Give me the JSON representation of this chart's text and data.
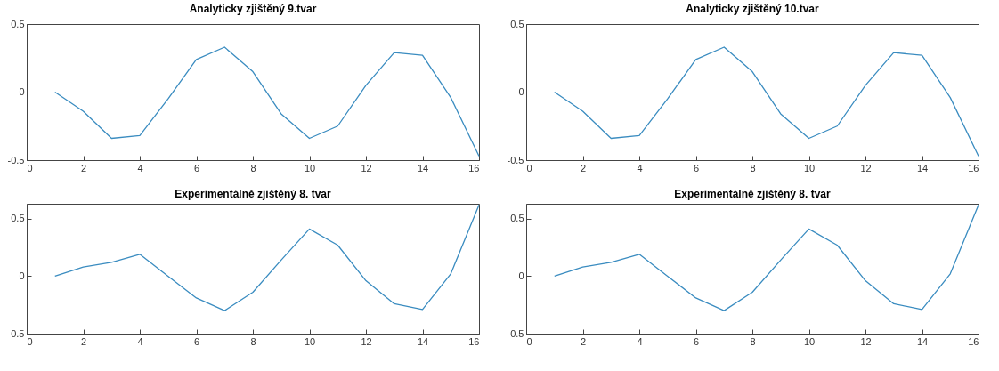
{
  "chart_data": [
    {
      "type": "line",
      "title": "Analyticky zjištěný 9.tvar",
      "x": [
        1,
        2,
        3,
        4,
        5,
        6,
        7,
        8,
        9,
        10,
        11,
        12,
        13,
        14,
        15,
        16
      ],
      "series": [
        {
          "color": "#3a8cc0",
          "values": [
            0,
            -0.14,
            -0.34,
            -0.32,
            -0.05,
            0.24,
            0.33,
            0.15,
            -0.16,
            -0.34,
            -0.25,
            0.05,
            0.29,
            0.27,
            -0.04,
            -0.47
          ]
        }
      ],
      "xlim": [
        0,
        16
      ],
      "xticks": [
        0,
        2,
        4,
        6,
        8,
        10,
        12,
        14,
        16
      ],
      "ylim": [
        -0.5,
        0.5
      ],
      "yticks": [
        -0.5,
        0,
        0.5
      ],
      "grid": false
    },
    {
      "type": "line",
      "title": "Analyticky zjištěný 10.tvar",
      "x": [
        1,
        2,
        3,
        4,
        5,
        6,
        7,
        8,
        9,
        10,
        11,
        12,
        13,
        14,
        15,
        16
      ],
      "series": [
        {
          "color": "#3a8cc0",
          "values": [
            0,
            -0.14,
            -0.34,
            -0.32,
            -0.05,
            0.24,
            0.33,
            0.15,
            -0.16,
            -0.34,
            -0.25,
            0.05,
            0.29,
            0.27,
            -0.04,
            -0.47
          ]
        }
      ],
      "xlim": [
        0,
        16
      ],
      "xticks": [
        0,
        2,
        4,
        6,
        8,
        10,
        12,
        14,
        16
      ],
      "ylim": [
        -0.5,
        0.5
      ],
      "yticks": [
        -0.5,
        0,
        0.5
      ],
      "grid": false
    },
    {
      "type": "line",
      "title": "Experimentálně zjištěný 8. tvar",
      "x": [
        1,
        2,
        3,
        4,
        5,
        6,
        7,
        8,
        9,
        10,
        11,
        12,
        13,
        14,
        15,
        16
      ],
      "series": [
        {
          "color": "#3a8cc0",
          "values": [
            0,
            0.08,
            0.12,
            0.19,
            0,
            -0.19,
            -0.3,
            -0.14,
            0.14,
            0.41,
            0.27,
            -0.04,
            -0.24,
            -0.29,
            0.02,
            0.62
          ]
        }
      ],
      "xlim": [
        0,
        16
      ],
      "xticks": [
        0,
        2,
        4,
        6,
        8,
        10,
        12,
        14,
        16
      ],
      "ylim": [
        -0.5,
        0.63
      ],
      "yticks": [
        -0.5,
        0,
        0.5
      ],
      "grid": false
    },
    {
      "type": "line",
      "title": "Experimentálně zjištěný 8. tvar",
      "x": [
        1,
        2,
        3,
        4,
        5,
        6,
        7,
        8,
        9,
        10,
        11,
        12,
        13,
        14,
        15,
        16
      ],
      "series": [
        {
          "color": "#3a8cc0",
          "values": [
            0,
            0.08,
            0.12,
            0.19,
            0,
            -0.19,
            -0.3,
            -0.14,
            0.14,
            0.41,
            0.27,
            -0.04,
            -0.24,
            -0.29,
            0.02,
            0.62
          ]
        }
      ],
      "xlim": [
        0,
        16
      ],
      "xticks": [
        0,
        2,
        4,
        6,
        8,
        10,
        12,
        14,
        16
      ],
      "ylim": [
        -0.5,
        0.63
      ],
      "yticks": [
        -0.5,
        0,
        0.5
      ],
      "grid": false
    }
  ]
}
